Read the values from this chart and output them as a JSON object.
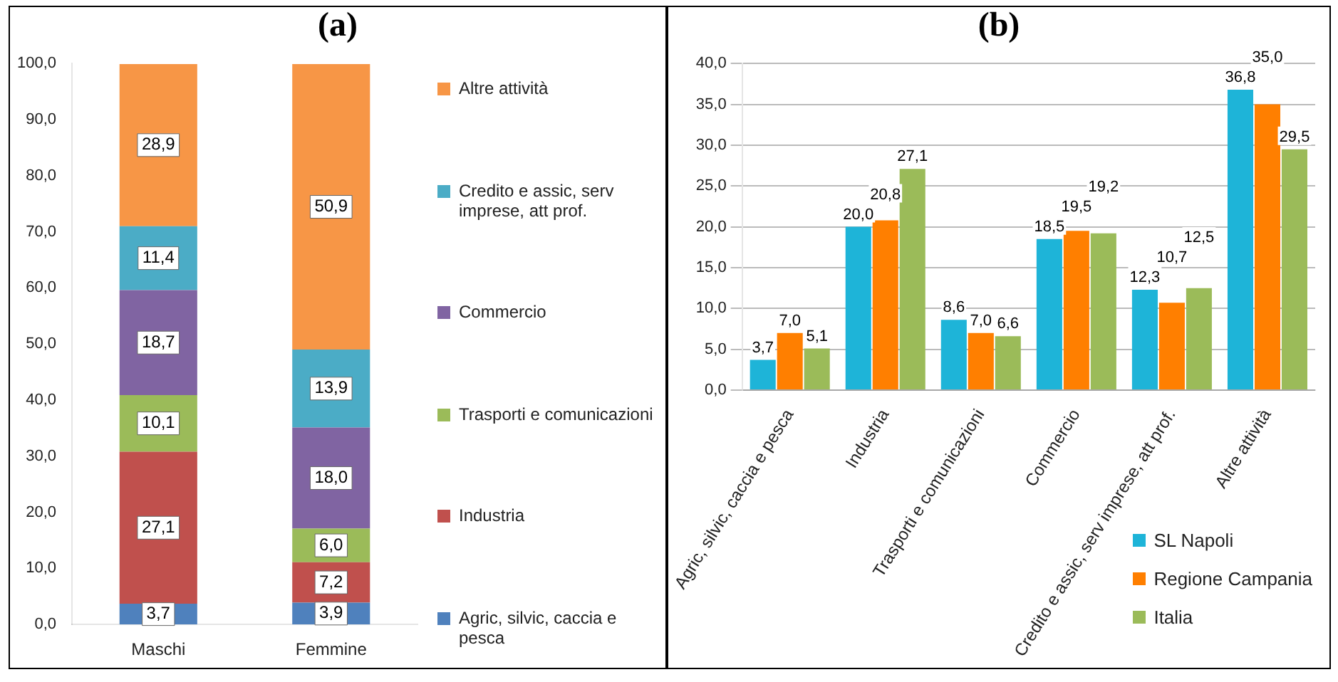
{
  "chart_data": [
    {
      "type": "bar",
      "title": "(a)",
      "stacked": true,
      "legend": "right",
      "grid": false,
      "categories": [
        "Maschi",
        "Femmine"
      ],
      "ylim": [
        0,
        100
      ],
      "yticks": [
        {
          "value": 0,
          "label": "0,0"
        },
        {
          "value": 10,
          "label": "10,0"
        },
        {
          "value": 20,
          "label": "20,0"
        },
        {
          "value": 30,
          "label": "30,0"
        },
        {
          "value": 40,
          "label": "40,0"
        },
        {
          "value": 50,
          "label": "50,0"
        },
        {
          "value": 60,
          "label": "60,0"
        },
        {
          "value": 70,
          "label": "70,0"
        },
        {
          "value": 80,
          "label": "80,0"
        },
        {
          "value": 90,
          "label": "90,0"
        },
        {
          "value": 100,
          "label": "100,0"
        }
      ],
      "series": [
        {
          "name": "Agric, silvic, caccia e pesca",
          "color": "#4f81bd",
          "values": [
            3.7,
            3.9
          ],
          "value_labels": [
            "3,7",
            "3,9"
          ]
        },
        {
          "name": "Industria",
          "color": "#c0504d",
          "values": [
            27.1,
            7.2
          ],
          "value_labels": [
            "27,1",
            "7,2"
          ]
        },
        {
          "name": "Trasporti e comunicazioni",
          "color": "#9bbb59",
          "values": [
            10.1,
            6.0
          ],
          "value_labels": [
            "10,1",
            "6,0"
          ]
        },
        {
          "name": "Commercio",
          "color": "#8064a2",
          "values": [
            18.7,
            18.0
          ],
          "value_labels": [
            "18,7",
            "18,0"
          ]
        },
        {
          "name": "Credito e assic, serv imprese, att prof.",
          "color": "#4bacc6",
          "values": [
            11.4,
            13.9
          ],
          "value_labels": [
            "11,4",
            "13,9"
          ]
        },
        {
          "name": "Altre attività",
          "color": "#f79646",
          "values": [
            28.9,
            50.9
          ],
          "value_labels": [
            "28,9",
            "50,9"
          ]
        }
      ]
    },
    {
      "type": "bar",
      "title": "(b)",
      "legend": "bottom right",
      "grid": "y",
      "categories": [
        "Agric, silvic, caccia e pesca",
        "Industria",
        "Trasporti e comunicazioni",
        "Commercio",
        "Credito e assic, serv imprese, att prof.",
        "Altre attività"
      ],
      "ylim": [
        0,
        40
      ],
      "yticks": [
        {
          "value": 0,
          "label": "0,0"
        },
        {
          "value": 5,
          "label": "5,0"
        },
        {
          "value": 10,
          "label": "10,0"
        },
        {
          "value": 15,
          "label": "15,0"
        },
        {
          "value": 20,
          "label": "20,0"
        },
        {
          "value": 25,
          "label": "25,0"
        },
        {
          "value": 30,
          "label": "30,0"
        },
        {
          "value": 35,
          "label": "35,0"
        },
        {
          "value": 40,
          "label": "40,0"
        }
      ],
      "series": [
        {
          "name": "SL Napoli",
          "color": "#1eb4d8",
          "values": [
            3.7,
            20.0,
            8.6,
            18.5,
            12.3,
            36.8
          ],
          "value_labels": [
            "3,7",
            "20,0",
            "8,6",
            "18,5",
            "12,3",
            "36,8"
          ]
        },
        {
          "name": "Regione Campania",
          "color": "#ff7f00",
          "values": [
            7.0,
            20.8,
            7.0,
            19.5,
            10.7,
            35.0
          ],
          "value_labels": [
            "7,0",
            "20,8",
            "7,0",
            "19,5",
            "10,7",
            "35,0"
          ]
        },
        {
          "name": "Italia",
          "color": "#9bbb59",
          "values": [
            5.1,
            27.1,
            6.6,
            19.2,
            12.5,
            29.5
          ],
          "value_labels": [
            "5,1",
            "27,1",
            "6,6",
            "19,2",
            "12,5",
            "29,5"
          ]
        }
      ]
    }
  ]
}
